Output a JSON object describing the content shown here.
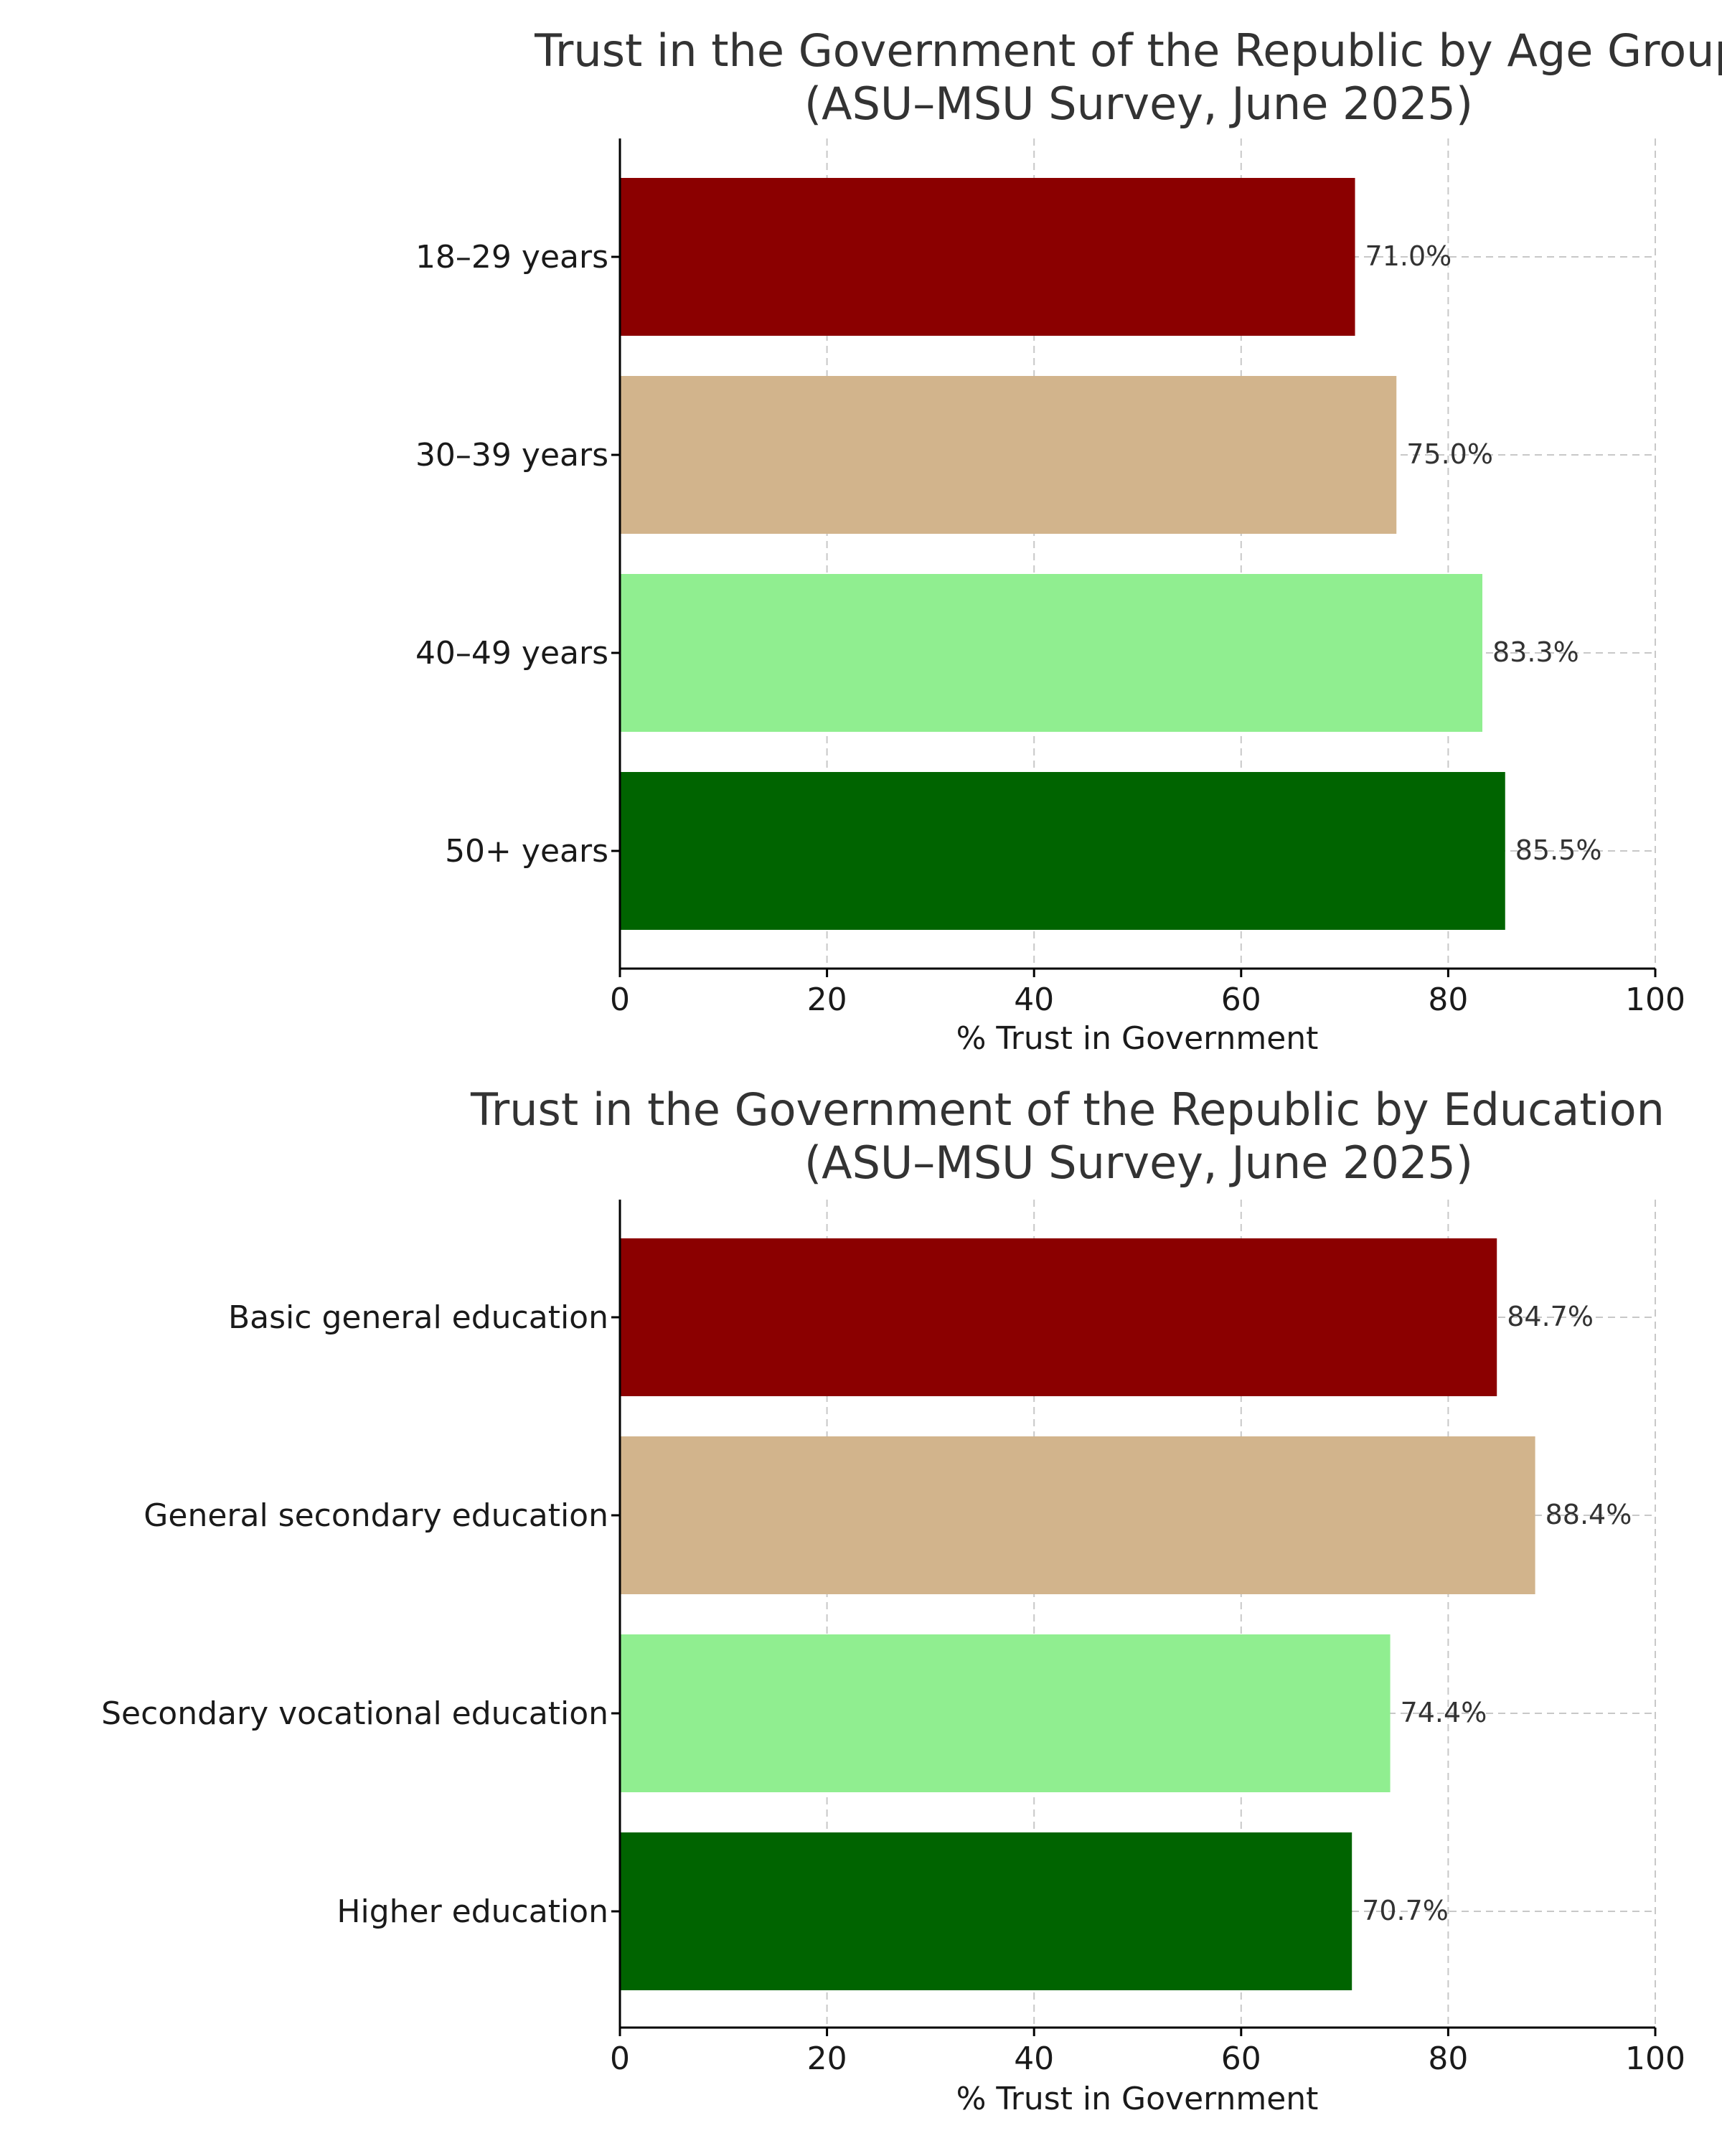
{
  "chart_data": [
    {
      "type": "bar",
      "orientation": "horizontal",
      "title": "Trust in the Government of the Republic by Age Group",
      "subtitle": "(ASU–MSU Survey, June 2025)",
      "categories": [
        "18–29 years",
        "30–39 years",
        "40–49 years",
        "50+ years"
      ],
      "values": [
        71.0,
        75.0,
        83.3,
        85.5
      ],
      "value_labels": [
        "71.0%",
        "75.0%",
        "83.3%",
        "85.5%"
      ],
      "colors": [
        "#8b0000",
        "#d2b48c",
        "#90ee90",
        "#006400"
      ],
      "xlabel": "% Trust in Government",
      "ylabel": "",
      "xlim": [
        0,
        100
      ],
      "xticks": [
        0,
        20,
        40,
        60,
        80,
        100
      ],
      "xtick_labels": [
        "0",
        "20",
        "40",
        "60",
        "80",
        "100"
      ],
      "grid": true,
      "legend": "none"
    },
    {
      "type": "bar",
      "orientation": "horizontal",
      "title": "Trust in the Government of the Republic by Education",
      "subtitle": "(ASU–MSU Survey, June 2025)",
      "categories": [
        "Basic general education",
        "General secondary education",
        "Secondary vocational education",
        "Higher education"
      ],
      "values": [
        84.7,
        88.4,
        74.4,
        70.7
      ],
      "value_labels": [
        "84.7%",
        "88.4%",
        "74.4%",
        "70.7%"
      ],
      "colors": [
        "#8b0000",
        "#d2b48c",
        "#90ee90",
        "#006400"
      ],
      "xlabel": "% Trust in Government",
      "ylabel": "",
      "xlim": [
        0,
        100
      ],
      "xticks": [
        0,
        20,
        40,
        60,
        80,
        100
      ],
      "xtick_labels": [
        "0",
        "20",
        "40",
        "60",
        "80",
        "100"
      ],
      "grid": true,
      "legend": "none"
    }
  ]
}
